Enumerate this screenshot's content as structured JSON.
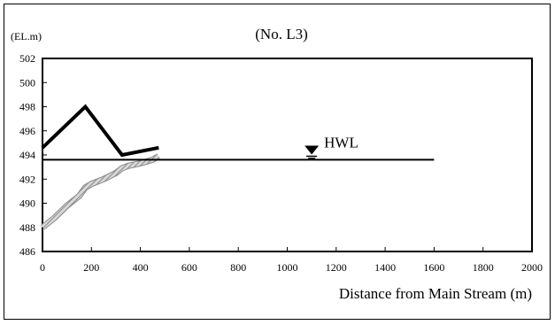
{
  "chart_data": {
    "type": "line",
    "title": "(No. L3)",
    "ylabel": "(EL.m)",
    "xlabel": "Distance from Main Stream (m)",
    "xlim": [
      0,
      2000
    ],
    "ylim": [
      486,
      502
    ],
    "x_ticks": [
      0,
      200,
      400,
      600,
      800,
      1000,
      1200,
      1400,
      1600,
      1800,
      2000
    ],
    "y_ticks": [
      486,
      488,
      490,
      492,
      494,
      496,
      498,
      500,
      502
    ],
    "grid": false,
    "annotations": [
      {
        "text": "HWL",
        "x": 1100,
        "y": 493.6
      }
    ],
    "series": [
      {
        "style": "thick-black",
        "color": "#000000",
        "x": [
          0,
          175,
          325,
          475
        ],
        "y": [
          494.6,
          498.0,
          494.0,
          494.6
        ]
      },
      {
        "style": "hatched-gray",
        "color": "#b0b0b0",
        "x": [
          0,
          50,
          100,
          150,
          175,
          200,
          250,
          300,
          325,
          350,
          400,
          450,
          475
        ],
        "y": [
          488.0,
          488.8,
          489.8,
          490.6,
          491.3,
          491.6,
          492.0,
          492.5,
          492.9,
          493.1,
          493.3,
          493.6,
          493.9
        ]
      },
      {
        "style": "hwl-line",
        "color": "#000000",
        "x": [
          0,
          1600
        ],
        "y": [
          493.6,
          493.6
        ]
      }
    ]
  }
}
